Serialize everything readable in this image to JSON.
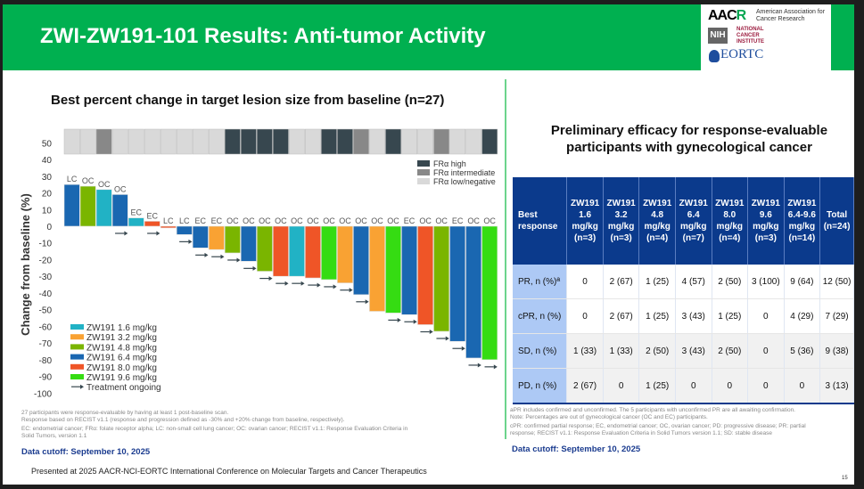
{
  "header": {
    "title": "ZWI-ZW191-101 Results: Anti-tumor Activity",
    "logos": {
      "aacr": "AACR",
      "aacr_text": "American Association for Cancer Research",
      "nih": "NIH",
      "nih_text": "NATIONAL CANCER INSTITUTE",
      "eortc": "EORTC"
    }
  },
  "colors": {
    "header_green": "#00b050",
    "table_header_blue": "#0b3a8c",
    "row_header_blue": "#adc9f5",
    "cutoff_blue": "#1a3b8f"
  },
  "chart_data": {
    "type": "bar",
    "title": "Best percent change in target lesion size from baseline (n=27)",
    "xlabel": "",
    "ylabel": "Change from baseline (%)",
    "ylim": [
      -100,
      50
    ],
    "yticks": [
      50,
      40,
      30,
      20,
      10,
      0,
      -10,
      -20,
      -30,
      -40,
      -50,
      -60,
      -70,
      -80,
      -90,
      -100
    ],
    "grid": false,
    "dose_colors": {
      "1.6": "#21b2c5",
      "3.2": "#f9a233",
      "4.8": "#7ab500",
      "6.4": "#1a67b1",
      "8.0": "#ef5527",
      "9.6": "#35dc12"
    },
    "frα_colors": {
      "H": "#37474f",
      "I": "#888888",
      "L": "#d9d9d9"
    },
    "bars": [
      {
        "value": 25,
        "dose": "6.4",
        "tumor": "LC",
        "ongoing": false,
        "fra": "L"
      },
      {
        "value": 24,
        "dose": "4.8",
        "tumor": "OC",
        "ongoing": false,
        "fra": "L"
      },
      {
        "value": 22,
        "dose": "1.6",
        "tumor": "OC",
        "ongoing": false,
        "fra": "I"
      },
      {
        "value": 19,
        "dose": "6.4",
        "tumor": "OC",
        "ongoing": true,
        "fra": "L"
      },
      {
        "value": 5,
        "dose": "1.6",
        "tumor": "EC",
        "ongoing": false,
        "fra": "L"
      },
      {
        "value": 3,
        "dose": "8.0",
        "tumor": "EC",
        "ongoing": true,
        "fra": "L"
      },
      {
        "value": -1,
        "dose": "8.0",
        "tumor": "LC",
        "ongoing": false,
        "fra": "L"
      },
      {
        "value": -5,
        "dose": "6.4",
        "tumor": "LC",
        "ongoing": true,
        "fra": "L"
      },
      {
        "value": -13,
        "dose": "6.4",
        "tumor": "EC",
        "ongoing": true,
        "fra": "L"
      },
      {
        "value": -14,
        "dose": "3.2",
        "tumor": "EC",
        "ongoing": true,
        "fra": "L"
      },
      {
        "value": -16,
        "dose": "4.8",
        "tumor": "OC",
        "ongoing": true,
        "fra": "H"
      },
      {
        "value": -21,
        "dose": "6.4",
        "tumor": "OC",
        "ongoing": true,
        "fra": "H"
      },
      {
        "value": -27,
        "dose": "4.8",
        "tumor": "OC",
        "ongoing": true,
        "fra": "H"
      },
      {
        "value": -30,
        "dose": "8.0",
        "tumor": "OC",
        "ongoing": true,
        "fra": "H"
      },
      {
        "value": -30,
        "dose": "1.6",
        "tumor": "OC",
        "ongoing": true,
        "fra": "L"
      },
      {
        "value": -31,
        "dose": "8.0",
        "tumor": "OC",
        "ongoing": true,
        "fra": "L"
      },
      {
        "value": -32,
        "dose": "9.6",
        "tumor": "OC",
        "ongoing": true,
        "fra": "H"
      },
      {
        "value": -34,
        "dose": "3.2",
        "tumor": "OC",
        "ongoing": true,
        "fra": "H"
      },
      {
        "value": -41,
        "dose": "6.4",
        "tumor": "OC",
        "ongoing": true,
        "fra": "I"
      },
      {
        "value": -51,
        "dose": "3.2",
        "tumor": "OC",
        "ongoing": false,
        "fra": "L"
      },
      {
        "value": -52,
        "dose": "9.6",
        "tumor": "OC",
        "ongoing": true,
        "fra": "H"
      },
      {
        "value": -53,
        "dose": "6.4",
        "tumor": "EC",
        "ongoing": true,
        "fra": "L"
      },
      {
        "value": -59,
        "dose": "8.0",
        "tumor": "OC",
        "ongoing": true,
        "fra": "L"
      },
      {
        "value": -63,
        "dose": "4.8",
        "tumor": "OC",
        "ongoing": true,
        "fra": "I"
      },
      {
        "value": -69,
        "dose": "6.4",
        "tumor": "EC",
        "ongoing": true,
        "fra": "L"
      },
      {
        "value": -79,
        "dose": "6.4",
        "tumor": "OC",
        "ongoing": true,
        "fra": "L"
      },
      {
        "value": -80,
        "dose": "9.6",
        "tumor": "OC",
        "ongoing": true,
        "fra": "H"
      }
    ],
    "legend": {
      "placement": "bottom-left",
      "items": [
        {
          "label": "ZW191 1.6 mg/kg",
          "dose": "1.6"
        },
        {
          "label": "ZW191 3.2 mg/kg",
          "dose": "3.2"
        },
        {
          "label": "ZW191 4.8 mg/kg",
          "dose": "4.8"
        },
        {
          "label": "ZW191 6.4 mg/kg",
          "dose": "6.4"
        },
        {
          "label": "ZW191 8.0 mg/kg",
          "dose": "8.0"
        },
        {
          "label": "ZW191 9.6 mg/kg",
          "dose": "9.6"
        }
      ],
      "ongoing_label": "Treatment ongoing"
    },
    "fra_legend": {
      "placement": "top-right",
      "items": [
        {
          "label": "FRα high",
          "key": "H"
        },
        {
          "label": "FRα intermediate",
          "key": "I"
        },
        {
          "label": "FRα low/negative",
          "key": "L"
        }
      ]
    }
  },
  "left_footnotes": [
    "27 participants were response-evaluable by having at least 1 post-baseline scan.",
    "Response based on RECIST v1.1 (response and progression defined as -30% and +20% change from baseline, respectively).",
    "EC: endometrial cancer; FRα: folate receptor alpha; LC: non-small cell lung cancer; OC: ovarian cancer; RECIST v1.1: Response Evaluation Criteria in",
    "Solid Tumors, version 1.1"
  ],
  "left_cutoff": "Data cutoff: September 10, 2025",
  "table": {
    "title_line1": "Preliminary efficacy for response-evaluable",
    "title_line2": "participants with gynecological cancer",
    "headers": [
      [
        "Best",
        "response"
      ],
      [
        "ZW191",
        "1.6",
        "mg/kg",
        "(n=3)"
      ],
      [
        "ZW191",
        "3.2",
        "mg/kg",
        "(n=3)"
      ],
      [
        "ZW191",
        "4.8",
        "mg/kg",
        "(n=4)"
      ],
      [
        "ZW191",
        "6.4",
        "mg/kg",
        "(n=7)"
      ],
      [
        "ZW191",
        "8.0",
        "mg/kg",
        "(n=4)"
      ],
      [
        "ZW191",
        "9.6",
        "mg/kg",
        "(n=3)"
      ],
      [
        "ZW191",
        "6.4-9.6",
        "mg/kg",
        "(n=14)"
      ],
      [
        "Total",
        "(n=24)"
      ]
    ],
    "rows": [
      {
        "label": "PR, n (%)ª",
        "cells": [
          "0",
          "2 (67)",
          "1 (25)",
          "4 (57)",
          "2 (50)",
          "3 (100)",
          "9 (64)",
          "12 (50)"
        ]
      },
      {
        "label": "cPR, n (%)",
        "cells": [
          "0",
          "2 (67)",
          "1 (25)",
          "3 (43)",
          "1 (25)",
          "0",
          "4 (29)",
          "7 (29)"
        ]
      },
      {
        "label": "SD, n (%)",
        "cells": [
          "1 (33)",
          "1 (33)",
          "2 (50)",
          "3 (43)",
          "2 (50)",
          "0",
          "5 (36)",
          "9 (38)"
        ]
      },
      {
        "label": "PD, n (%)",
        "cells": [
          "2 (67)",
          "0",
          "1 (25)",
          "0",
          "0",
          "0",
          "0",
          "3 (13)"
        ]
      }
    ]
  },
  "right_footnotes": [
    "aPR includes confirmed and unconfirmed. The 5 participants with unconfirmed PR are all awaiting confirmation.",
    "Note: Percentages are out of gynecological cancer (OC and EC) participants.",
    "cPR: confirmed partial response; EC, endometrial cancer; OC, ovarian cancer; PD: progressive disease; PR: partial",
    "response; RECIST v1.1: Response Evaluation Criteria in Solid Tumors version 1.1; SD: stable disease"
  ],
  "right_cutoff": "Data cutoff: September 10, 2025",
  "footer": {
    "presented": "Presented at 2025 AACR-NCI-EORTC International Conference on Molecular Targets and Cancer Therapeutics",
    "page_number": "15"
  }
}
